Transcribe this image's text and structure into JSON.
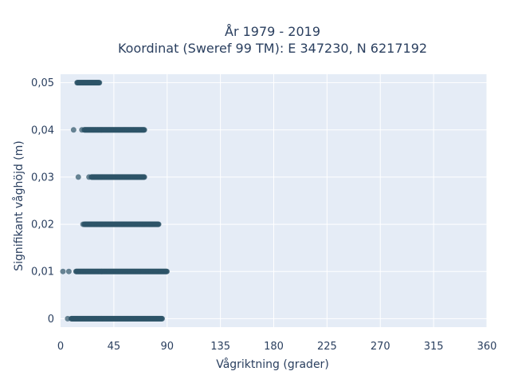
{
  "chart_data": {
    "type": "scatter",
    "title_lines": [
      "År 1979 - 2019",
      "Koordinat (Sweref 99 TM): E 347230, N 6217192"
    ],
    "xlabel": "Vågriktning (grader)",
    "ylabel": "Signifikant våghöjd (m)",
    "xlim": [
      0,
      360
    ],
    "ylim": [
      -0.0018,
      0.0518
    ],
    "x_ticks": [
      0,
      45,
      90,
      135,
      180,
      225,
      270,
      315,
      360
    ],
    "x_tick_labels": [
      "0",
      "45",
      "90",
      "135",
      "180",
      "225",
      "270",
      "315",
      "360"
    ],
    "y_ticks": [
      0,
      0.01,
      0.02,
      0.03,
      0.04,
      0.05
    ],
    "y_tick_labels": [
      "0",
      "0,01",
      "0,02",
      "0,03",
      "0,04",
      "0,05"
    ],
    "grid": true,
    "marker_color": "#2e5468",
    "plot_background": "#e5ecf6",
    "series": [
      {
        "clusters": [
          {
            "y": 0.05,
            "x_dense": [
              14,
              33
            ],
            "x_outliers": []
          },
          {
            "y": 0.04,
            "x_dense": [
              20,
              71
            ],
            "x_outliers": [
              11,
              18
            ]
          },
          {
            "y": 0.03,
            "x_dense": [
              26,
              71
            ],
            "x_outliers": [
              15,
              24
            ]
          },
          {
            "y": 0.02,
            "x_dense": [
              20,
              83
            ],
            "x_outliers": [
              19
            ]
          },
          {
            "y": 0.01,
            "x_dense": [
              13,
              90
            ],
            "x_outliers": [
              2,
              7
            ]
          },
          {
            "y": 0.0,
            "x_dense": [
              9,
              86
            ],
            "x_outliers": [
              6
            ]
          }
        ]
      }
    ]
  }
}
